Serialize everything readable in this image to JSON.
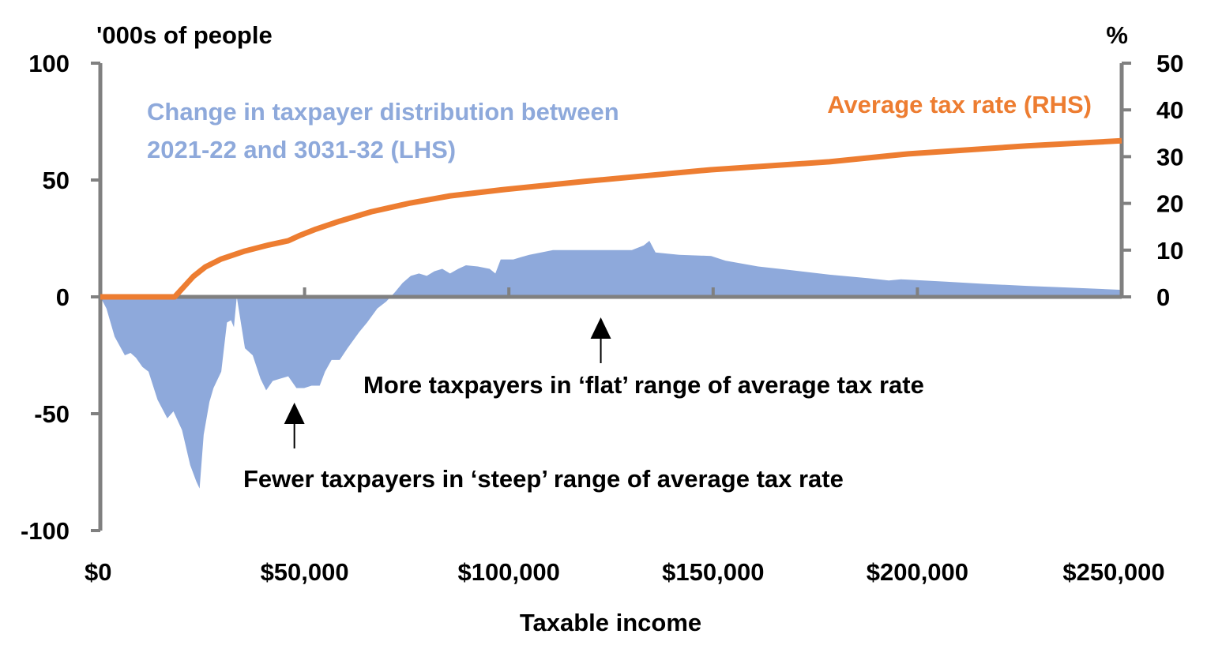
{
  "chart_data": {
    "type": "area+line",
    "xlabel": "Taxable income",
    "ylabel_left": "'000s of people",
    "ylabel_right": "%",
    "xlim": [
      0,
      250000
    ],
    "ylim_left": [
      -100,
      100
    ],
    "ylim_right": [
      0,
      50
    ],
    "x_ticks": [
      0,
      50000,
      100000,
      150000,
      200000,
      250000
    ],
    "x_tick_labels": [
      "$0",
      "$50,000",
      "$100,000",
      "$150,000",
      "$200,000",
      "$250,000"
    ],
    "y_left_ticks": [
      100,
      50,
      0,
      -50,
      -100
    ],
    "y_left_tick_labels": [
      "100",
      "50",
      "0",
      "-50",
      "-100"
    ],
    "y_right_ticks": [
      50,
      40,
      30,
      20,
      10,
      0
    ],
    "y_right_tick_labels": [
      "50",
      "40",
      "30",
      "20",
      "10",
      "0"
    ],
    "grid": false,
    "series": [
      {
        "name": "Change in taxpayer distribution between 2021-22 and 3031-32 (LHS)",
        "label_lines": [
          "Change in taxpayer distribution between",
          "2021-22 and 3031-32 (LHS)"
        ],
        "axis": "left",
        "kind": "area",
        "color": "#8EA9DB",
        "x": [
          0,
          1500,
          3500,
          6000,
          7400,
          8700,
          10300,
          11800,
          14000,
          16400,
          17900,
          20000,
          22000,
          23500,
          24300,
          25300,
          26700,
          27700,
          29600,
          31000,
          32000,
          32700,
          33400,
          35400,
          37300,
          39200,
          40600,
          42200,
          44000,
          46000,
          48000,
          49900,
          51700,
          53700,
          55000,
          56600,
          58600,
          60500,
          63400,
          65300,
          67800,
          70000,
          72100,
          74000,
          76000,
          78000,
          79900,
          81800,
          83700,
          85600,
          87600,
          89500,
          92400,
          95300,
          96700,
          98000,
          101100,
          103000,
          105000,
          107900,
          110800,
          114700,
          118500,
          122400,
          126000,
          130100,
          133000,
          134400,
          135900,
          141700,
          149500,
          153000,
          161000,
          168800,
          178500,
          188000,
          193000,
          196000,
          207000,
          217000,
          226800,
          236500,
          250000
        ],
        "values": [
          0,
          -5,
          -17,
          -25,
          -24,
          -26,
          -30,
          -32,
          -44,
          -52,
          -49,
          -57,
          -72,
          -79,
          -82,
          -59,
          -45,
          -39,
          -32,
          -11,
          -10,
          -13,
          0,
          -22,
          -25,
          -35,
          -40,
          -36,
          -35,
          -34,
          -39,
          -39,
          -38,
          -38,
          -32,
          -27,
          -27,
          -22,
          -15,
          -11,
          -5,
          -2,
          2,
          6,
          9,
          10,
          9,
          11,
          12,
          10,
          12,
          13.5,
          13,
          12,
          10,
          16,
          16,
          17,
          18,
          19,
          20,
          20,
          20,
          20,
          20,
          20,
          22,
          24,
          19,
          18,
          17.5,
          15.5,
          13,
          11.5,
          9.5,
          8,
          7,
          7.5,
          6.5,
          5.5,
          4.7,
          4,
          3
        ]
      },
      {
        "name": "Average tax rate (RHS)",
        "axis": "right",
        "kind": "line",
        "color": "#ED7D31",
        "x": [
          0,
          18200,
          22800,
          25700,
          29600,
          35400,
          41200,
          46000,
          49000,
          52800,
          58600,
          66300,
          76000,
          85600,
          99200,
          118500,
          149500,
          178500,
          197800,
          226800,
          250000
        ],
        "values": [
          0,
          0,
          4.4,
          6.4,
          8.1,
          9.8,
          11.1,
          12,
          13.2,
          14.5,
          16.2,
          18.2,
          20.1,
          21.6,
          23,
          24.7,
          27.2,
          28.9,
          30.6,
          32.3,
          33.4
        ]
      }
    ],
    "annotations": [
      {
        "text": "More taxpayers in ‘flat’ range of average tax rate",
        "arrow_at_x": 122500
      },
      {
        "text": "Fewer taxpayers in ‘steep’ range of average tax rate",
        "arrow_at_x": 47500
      }
    ],
    "axis_color": "#808080"
  }
}
